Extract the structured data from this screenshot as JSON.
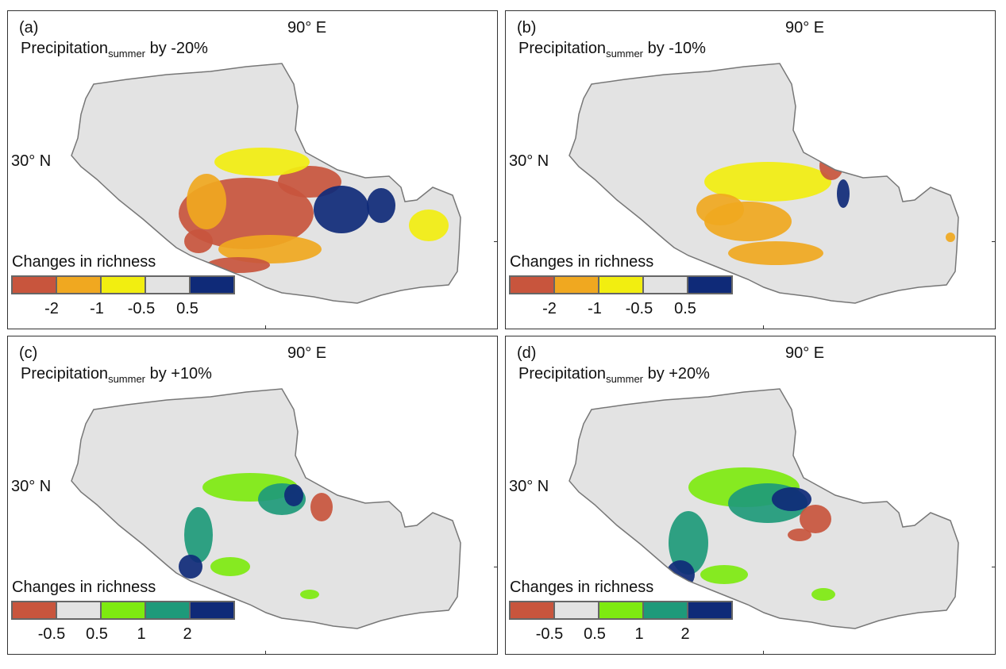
{
  "lon_label": "90° E",
  "lat_label": "30° N",
  "legend_title": "Changes in richness",
  "colors": {
    "background_region": "#e3e3e3",
    "outline": "#777777",
    "panel_border": "#333333"
  },
  "panels": [
    {
      "letter": "(a)",
      "title_main": "Precipitation",
      "title_sub": "summer",
      "title_suffix": " by -20%",
      "legend_colors": [
        "#c8553d",
        "#f0a820",
        "#f2ee10",
        "#e3e3e3",
        "#0f2a78"
      ],
      "legend_ticks": [
        "-2",
        "-1",
        "-0.5",
        "0.5"
      ]
    },
    {
      "letter": "(b)",
      "title_main": "Precipitation",
      "title_sub": "summer",
      "title_suffix": " by -10%",
      "legend_colors": [
        "#c8553d",
        "#f0a820",
        "#f2ee10",
        "#e3e3e3",
        "#0f2a78"
      ],
      "legend_ticks": [
        "-2",
        "-1",
        "-0.5",
        "0.5"
      ]
    },
    {
      "letter": "(c)",
      "title_main": "Precipitation",
      "title_sub": "summer",
      "title_suffix": " by +10%",
      "legend_colors": [
        "#c8553d",
        "#e3e3e3",
        "#7eea10",
        "#1e9a7a",
        "#0f2a78"
      ],
      "legend_ticks": [
        "-0.5",
        "0.5",
        "1",
        "2"
      ]
    },
    {
      "letter": "(d)",
      "title_main": "Precipitation",
      "title_sub": "summer",
      "title_suffix": " by +20%",
      "legend_colors": [
        "#c8553d",
        "#e3e3e3",
        "#7eea10",
        "#1e9a7a",
        "#0f2a78"
      ],
      "legend_ticks": [
        "-0.5",
        "0.5",
        "1",
        "2"
      ]
    }
  ]
}
